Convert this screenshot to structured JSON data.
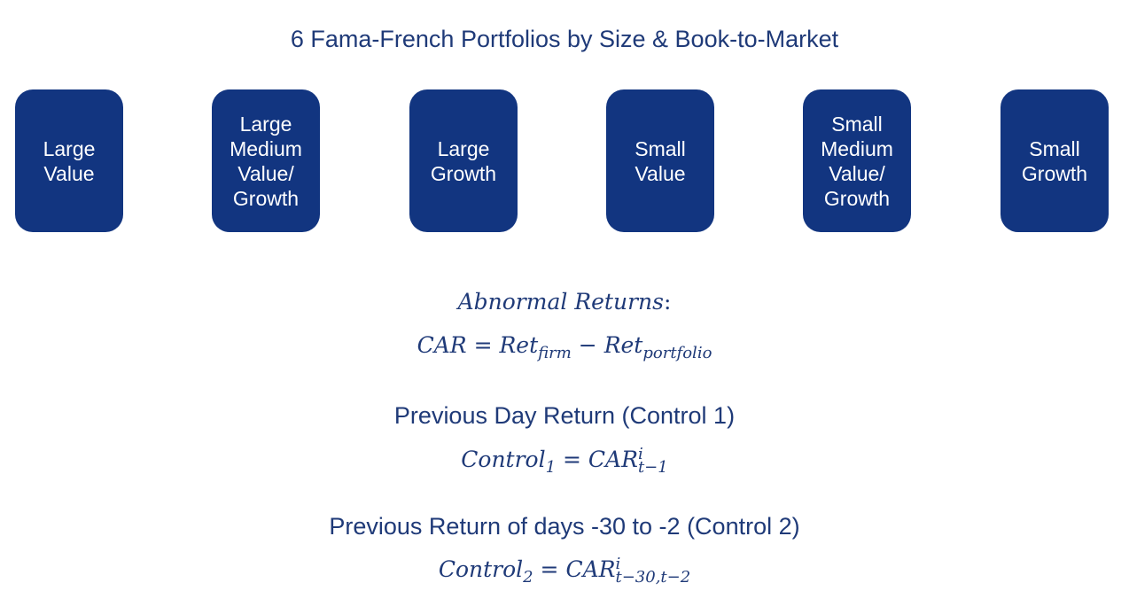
{
  "title": "6 Fama-French Portfolios by Size & Book-to-Market",
  "portfolios": [
    {
      "label": "Large\nValue"
    },
    {
      "label": "Large\nMedium\nValue/\nGrowth"
    },
    {
      "label": "Large\nGrowth"
    },
    {
      "label": "Small\nValue"
    },
    {
      "label": "Small\nMedium\nValue/\nGrowth"
    },
    {
      "label": "Small\nGrowth"
    }
  ],
  "abnormal": {
    "label": "Abnormal Returns",
    "colon": ":",
    "lhs": "CAR",
    "equals": "=",
    "term1": "Ret",
    "term1_sub": "firm",
    "minus": "−",
    "term2": "Ret",
    "term2_sub": "portfolio"
  },
  "control1": {
    "heading": "Previous Day Return (Control 1)",
    "lhs": "Control",
    "lhs_sub": "1",
    "equals": "=",
    "rhs": "CAR",
    "rhs_sup": "i",
    "rhs_sub": "t−1"
  },
  "control2": {
    "heading": "Previous Return of days -30 to -2 (Control 2)",
    "lhs": "Control",
    "lhs_sub": "2",
    "equals": "=",
    "rhs": "CAR",
    "rhs_sup": "i",
    "rhs_sub": "t−30,t−2"
  }
}
